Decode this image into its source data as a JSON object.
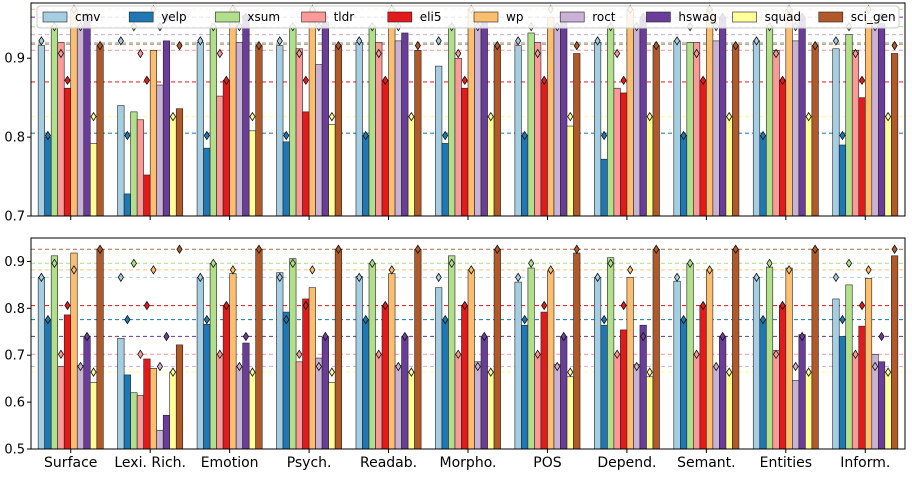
{
  "chart_data": [
    {
      "type": "bar",
      "categories": [
        "Surface",
        "Lexi. Rich.",
        "Emotion",
        "Psych.",
        "Readab.",
        "Morpho.",
        "POS",
        "Depend.",
        "Semant.",
        "Entities",
        "Inform."
      ],
      "ylim": [
        0.7,
        0.97
      ],
      "yticks": [
        "0.7",
        "0.8",
        "0.9"
      ],
      "xlabel": "",
      "ylabel": "",
      "legend": "top",
      "grid": false,
      "series": [
        {
          "name": "cmv",
          "color": "#a6cee3",
          "values": [
            0.916,
            0.84,
            0.92,
            0.916,
            0.92,
            0.89,
            0.916,
            0.92,
            0.922,
            0.922,
            0.912
          ],
          "markers": [
            0.922,
            0.922,
            0.922,
            0.922,
            0.922,
            0.922,
            0.922,
            0.922,
            0.922,
            0.922,
            0.922
          ],
          "baseline": 0.92
        },
        {
          "name": "yelp",
          "color": "#1f78b4",
          "values": [
            0.8,
            0.728,
            0.786,
            0.794,
            0.802,
            0.792,
            0.802,
            0.772,
            0.802,
            0.802,
            0.79
          ],
          "markers": [
            0.802,
            0.802,
            0.802,
            0.802,
            0.802,
            0.802,
            0.802,
            0.802,
            0.802,
            0.802,
            0.802
          ],
          "baseline": 0.805
        },
        {
          "name": "xsum",
          "color": "#b2df8a",
          "values": [
            0.94,
            0.832,
            0.94,
            0.94,
            0.94,
            0.94,
            0.932,
            0.94,
            0.92,
            0.94,
            0.93
          ],
          "markers": [
            0.94,
            0.94,
            0.94,
            0.94,
            0.94,
            0.94,
            0.94,
            0.94,
            0.94,
            0.94,
            0.94
          ],
          "baseline": 0.94
        },
        {
          "name": "tldr",
          "color": "#fb9a99",
          "values": [
            0.92,
            0.822,
            0.852,
            0.912,
            0.92,
            0.9,
            0.92,
            0.862,
            0.92,
            0.91,
            0.91
          ],
          "markers": [
            0.906,
            0.906,
            0.906,
            0.906,
            0.906,
            0.906,
            0.906,
            0.906,
            0.906,
            0.906,
            0.906
          ],
          "baseline": 0.91
        },
        {
          "name": "eli5",
          "color": "#e31a1c",
          "values": [
            0.862,
            0.752,
            0.872,
            0.832,
            0.872,
            0.862,
            0.87,
            0.856,
            0.872,
            0.872,
            0.85
          ],
          "markers": [
            0.872,
            0.872,
            0.872,
            0.872,
            0.872,
            0.872,
            0.872,
            0.872,
            0.872,
            0.872,
            0.872
          ],
          "baseline": 0.87
        },
        {
          "name": "wp",
          "color": "#fdbf6f",
          "values": [
            0.962,
            0.91,
            0.962,
            0.962,
            0.962,
            0.962,
            0.952,
            0.962,
            0.962,
            0.962,
            0.948
          ],
          "markers": [
            0.962,
            0.962,
            0.962,
            0.962,
            0.962,
            0.962,
            0.962,
            0.962,
            0.962,
            0.962,
            0.962
          ],
          "baseline": 0.962
        },
        {
          "name": "roct",
          "color": "#cab2d6",
          "values": [
            0.94,
            0.866,
            0.92,
            0.892,
            0.922,
            0.94,
            0.94,
            0.94,
            0.922,
            0.922,
            0.94
          ],
          "markers": [
            0.94,
            0.94,
            0.94,
            0.94,
            0.94,
            0.94,
            0.94,
            0.94,
            0.94,
            0.94,
            0.94
          ],
          "baseline": 0.93
        },
        {
          "name": "hswag",
          "color": "#6a3d9a",
          "values": [
            0.952,
            0.922,
            0.954,
            0.946,
            0.932,
            0.95,
            0.95,
            0.952,
            0.952,
            0.952,
            0.944
          ],
          "markers": [
            0.952,
            0.952,
            0.952,
            0.952,
            0.952,
            0.952,
            0.952,
            0.952,
            0.952,
            0.952,
            0.952
          ],
          "baseline": 0.952
        },
        {
          "name": "squad",
          "color": "#ffff99",
          "values": [
            0.792,
            0.826,
            0.808,
            0.816,
            0.826,
            0.826,
            0.814,
            0.826,
            0.826,
            0.826,
            0.826
          ],
          "markers": [
            0.826,
            0.826,
            0.826,
            0.826,
            0.826,
            0.826,
            0.826,
            0.826,
            0.826,
            0.826,
            0.826
          ],
          "baseline": 0.826
        },
        {
          "name": "sci_gen",
          "color": "#b15928",
          "values": [
            0.916,
            0.836,
            0.916,
            0.916,
            0.91,
            0.916,
            0.906,
            0.916,
            0.916,
            0.916,
            0.906
          ],
          "markers": [
            0.916,
            0.916,
            0.916,
            0.916,
            0.916,
            0.916,
            0.916,
            0.916,
            0.916,
            0.916,
            0.916
          ],
          "baseline": 0.918
        }
      ]
    },
    {
      "type": "bar",
      "categories": [
        "Surface",
        "Lexi. Rich.",
        "Emotion",
        "Psych.",
        "Readab.",
        "Morpho.",
        "POS",
        "Depend.",
        "Semant.",
        "Entities",
        "Inform."
      ],
      "ylim": [
        0.5,
        0.95
      ],
      "yticks": [
        "0.5",
        "0.6",
        "0.7",
        "0.8",
        "0.9"
      ],
      "xlabel": "",
      "ylabel": "",
      "grid": false,
      "series": [
        {
          "name": "cmv",
          "color": "#a6cee3",
          "values": [
            0.866,
            0.736,
            0.866,
            0.876,
            0.868,
            0.844,
            0.856,
            0.866,
            0.858,
            0.866,
            0.82
          ],
          "markers": [
            0.866,
            0.866,
            0.866,
            0.866,
            0.866,
            0.866,
            0.866,
            0.866,
            0.866,
            0.866,
            0.866
          ],
          "baseline": 0.866
        },
        {
          "name": "yelp",
          "color": "#1f78b4",
          "values": [
            0.776,
            0.658,
            0.766,
            0.792,
            0.776,
            0.776,
            0.764,
            0.764,
            0.776,
            0.776,
            0.74
          ],
          "markers": [
            0.776,
            0.776,
            0.776,
            0.776,
            0.776,
            0.776,
            0.776,
            0.776,
            0.776,
            0.776,
            0.776
          ],
          "baseline": 0.776
        },
        {
          "name": "xsum",
          "color": "#b2df8a",
          "values": [
            0.912,
            0.62,
            0.896,
            0.906,
            0.896,
            0.912,
            0.886,
            0.908,
            0.896,
            0.888,
            0.85
          ],
          "markers": [
            0.896,
            0.896,
            0.896,
            0.896,
            0.896,
            0.896,
            0.896,
            0.896,
            0.896,
            0.896,
            0.896
          ],
          "baseline": 0.896
        },
        {
          "name": "tldr",
          "color": "#fb9a99",
          "values": [
            0.676,
            0.614,
            0.702,
            0.686,
            0.702,
            0.702,
            0.702,
            0.702,
            0.702,
            0.71,
            0.702
          ],
          "markers": [
            0.702,
            0.702,
            0.702,
            0.702,
            0.702,
            0.702,
            0.702,
            0.702,
            0.702,
            0.702,
            0.702
          ],
          "baseline": 0.702
        },
        {
          "name": "eli5",
          "color": "#e31a1c",
          "values": [
            0.786,
            0.692,
            0.806,
            0.82,
            0.806,
            0.806,
            0.792,
            0.754,
            0.806,
            0.806,
            0.762
          ],
          "markers": [
            0.806,
            0.806,
            0.806,
            0.806,
            0.806,
            0.806,
            0.806,
            0.806,
            0.806,
            0.806,
            0.806
          ],
          "baseline": 0.806
        },
        {
          "name": "wp",
          "color": "#fdbf6f",
          "values": [
            0.918,
            0.672,
            0.874,
            0.844,
            0.874,
            0.882,
            0.88,
            0.866,
            0.882,
            0.886,
            0.864
          ],
          "markers": [
            0.882,
            0.882,
            0.882,
            0.882,
            0.882,
            0.882,
            0.882,
            0.882,
            0.882,
            0.882,
            0.882
          ],
          "baseline": 0.882
        },
        {
          "name": "roct",
          "color": "#cab2d6",
          "values": [
            0.678,
            0.54,
            0.676,
            0.694,
            0.678,
            0.686,
            0.68,
            0.68,
            0.676,
            0.646,
            0.702
          ],
          "markers": [
            0.676,
            0.676,
            0.676,
            0.676,
            0.676,
            0.676,
            0.676,
            0.676,
            0.676,
            0.676,
            0.676
          ],
          "baseline": 0.676
        },
        {
          "name": "hswag",
          "color": "#6a3d9a",
          "values": [
            0.738,
            0.572,
            0.726,
            0.738,
            0.74,
            0.738,
            0.74,
            0.764,
            0.74,
            0.744,
            0.686
          ],
          "markers": [
            0.74,
            0.74,
            0.74,
            0.74,
            0.74,
            0.74,
            0.74,
            0.74,
            0.74,
            0.74,
            0.74
          ],
          "baseline": 0.74
        },
        {
          "name": "squad",
          "color": "#ffff99",
          "values": [
            0.642,
            0.664,
            0.664,
            0.642,
            0.664,
            0.664,
            0.654,
            0.654,
            0.664,
            0.664,
            0.664
          ],
          "markers": [
            0.664,
            0.664,
            0.664,
            0.664,
            0.664,
            0.664,
            0.664,
            0.664,
            0.664,
            0.664,
            0.664
          ],
          "baseline": 0.664
        },
        {
          "name": "sci_gen",
          "color": "#b15928",
          "values": [
            0.926,
            0.722,
            0.926,
            0.926,
            0.926,
            0.926,
            0.918,
            0.926,
            0.926,
            0.926,
            0.912
          ],
          "markers": [
            0.926,
            0.926,
            0.926,
            0.926,
            0.926,
            0.926,
            0.926,
            0.926,
            0.926,
            0.926,
            0.926
          ],
          "baseline": 0.926
        }
      ]
    }
  ]
}
